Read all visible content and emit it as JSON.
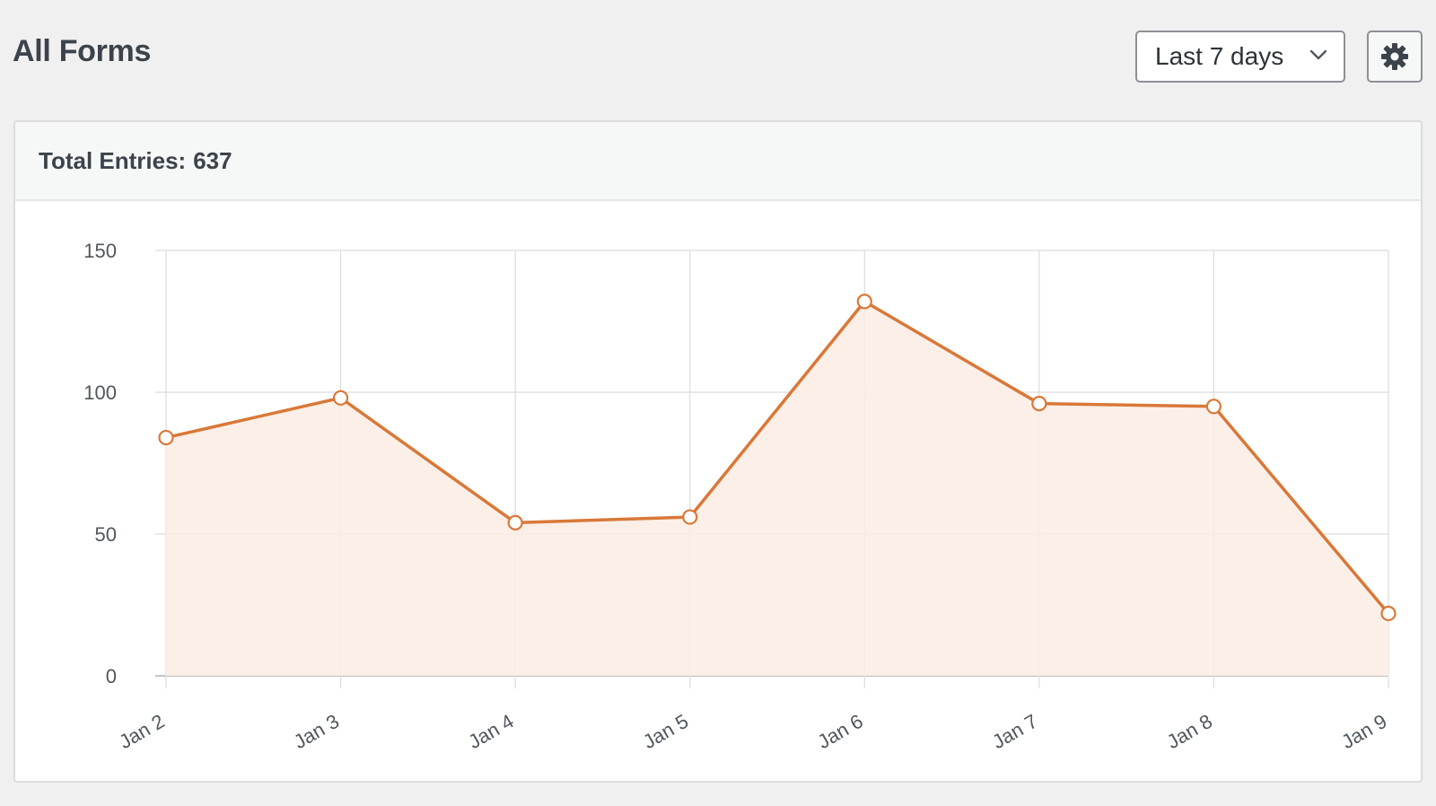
{
  "header": {
    "title": "All Forms",
    "range_select": {
      "value": "Last 7 days"
    },
    "settings_icon": "gear-icon"
  },
  "panel": {
    "total_label": "Total Entries:",
    "total_value": "637"
  },
  "colors": {
    "line": "#d97838",
    "fill": "#fcece3",
    "grid": "#dcdcde",
    "axis": "#c3c4c7",
    "page_bg": "#f0f0f1"
  },
  "chart_data": {
    "type": "area",
    "categories": [
      "Jan 2",
      "Jan 3",
      "Jan 4",
      "Jan 5",
      "Jan 6",
      "Jan 7",
      "Jan 8",
      "Jan 9"
    ],
    "series": [
      {
        "values": [
          84,
          98,
          54,
          56,
          132,
          96,
          95,
          22
        ]
      }
    ],
    "y_ticks": [
      0,
      50,
      100,
      150
    ],
    "ylim": [
      0,
      150
    ],
    "grid": true,
    "legend": "none",
    "x_tick_rotation": -30
  }
}
